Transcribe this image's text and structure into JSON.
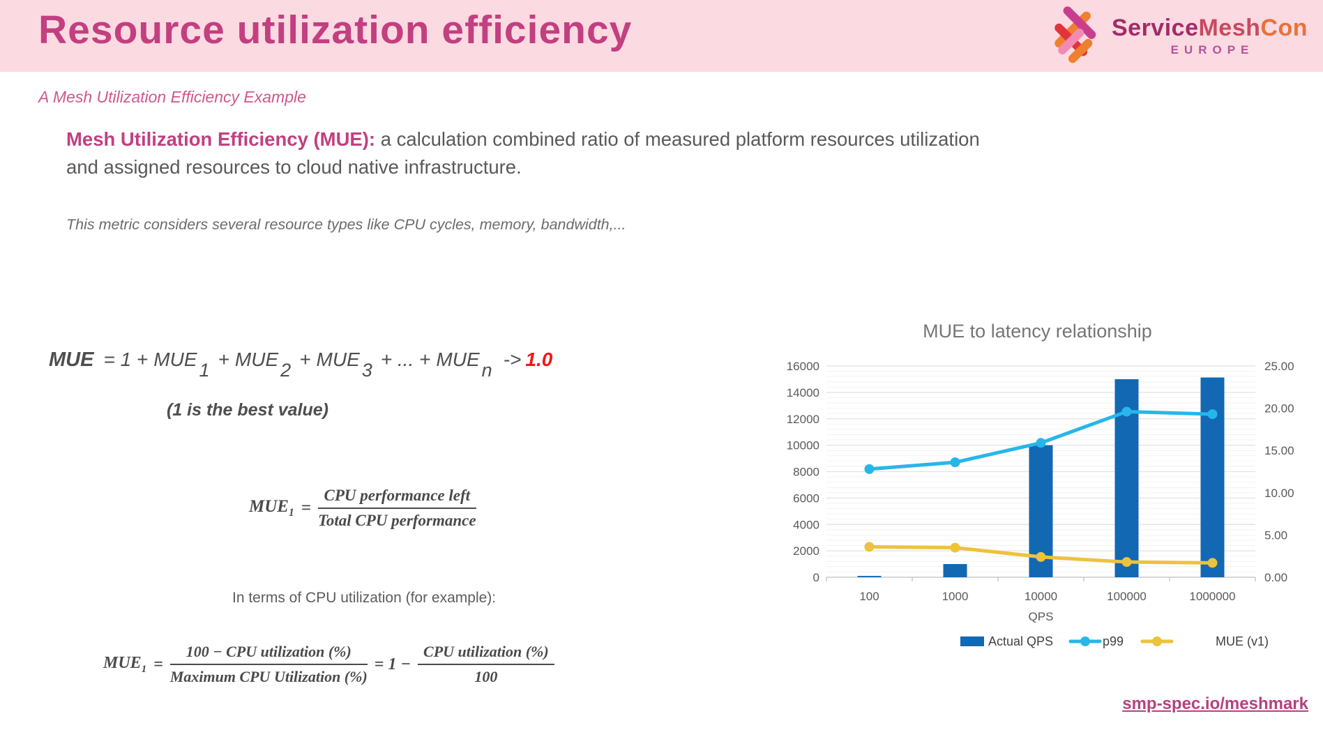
{
  "header": {
    "title": "Resource utilization efficiency",
    "logo": {
      "service": "Service",
      "mesh": "Mesh",
      "con": "Con",
      "europe": "EUROPE"
    }
  },
  "subtitle": "A Mesh Utilization Efficiency Example",
  "lead": {
    "bold": "Mesh Utilization Efficiency (MUE):",
    "rest": " a calculation combined ratio of measured platform resources utilization and assigned resources to cloud native infrastructure."
  },
  "note": "This metric considers several resource types like CPU cycles, memory, bandwidth,...",
  "formula_sum": {
    "head": "MUE",
    "op0": "= 1 +",
    "t1": "MUE",
    "s1": "1",
    "p1": "+",
    "t2": "MUE",
    "s2": "2",
    "p2": "+",
    "t3": "MUE",
    "s3": "3",
    "p3": "+ ... +",
    "t4": "MUE",
    "s4": "n",
    "arrow": "->",
    "value": "1.0",
    "caption": "(1 is the best value)"
  },
  "formula_cpu": {
    "lhs": "MUE",
    "lhs_sub": "1",
    "eq": "=",
    "num": "CPU performance left",
    "den": "Total CPU performance"
  },
  "in_terms": "In terms of CPU utilization (for example):",
  "formula_util": {
    "lhs": "MUE",
    "lhs_sub": "1",
    "eq": "=",
    "f1_num": "100 − CPU utilization (%)",
    "f1_den": "Maximum CPU Utilization (%)",
    "eq2": "= 1 −",
    "f2_num": "CPU utilization (%)",
    "f2_den": "100"
  },
  "chart_data": {
    "type": "combo",
    "title": "MUE to latency relationship",
    "xlabel": "QPS",
    "categories": [
      "100",
      "1000",
      "10000",
      "100000",
      "1000000"
    ],
    "left_axis": {
      "min": 0,
      "max": 16000,
      "step": 2000,
      "ticks": [
        "0",
        "2000",
        "4000",
        "6000",
        "8000",
        "10000",
        "12000",
        "14000",
        "16000"
      ]
    },
    "right_axis": {
      "min": 0,
      "max": 25,
      "step": 5,
      "ticks": [
        "0.00",
        "5.00",
        "10.00",
        "15.00",
        "20.00",
        "25.00"
      ]
    },
    "grid": {
      "minor_step": 400,
      "minor_color": "#f2f2f2",
      "major_color": "#e1e1e1"
    },
    "legend_position": "bottom",
    "series": [
      {
        "name": "Actual QPS",
        "type": "bar",
        "axis": "left",
        "color": "#1268b2",
        "values": [
          100,
          1000,
          10000,
          15000,
          15130
        ]
      },
      {
        "name": "p99",
        "type": "line",
        "axis": "right",
        "color": "#27b6ea",
        "values": [
          12.8,
          13.6,
          15.9,
          19.6,
          19.3
        ]
      },
      {
        "name": "MUE (v1)",
        "type": "line",
        "axis": "right",
        "color": "#edc23e",
        "values": [
          3.6,
          3.5,
          2.4,
          1.8,
          1.7
        ]
      }
    ]
  },
  "footer": {
    "link": "smp-spec.io/meshmark"
  },
  "colors": {
    "header_bg": "#fbdae1",
    "title_pink": "#c23f80",
    "subtitle_pink": "#d1568f",
    "body_gray": "#595959",
    "formula_gray": "#4a4a4a",
    "highlight_red": "#f51515",
    "bar_blue": "#1268b2",
    "line_cyan": "#27b6ea",
    "line_yellow": "#edc23e",
    "link_pink": "#b5417f"
  }
}
